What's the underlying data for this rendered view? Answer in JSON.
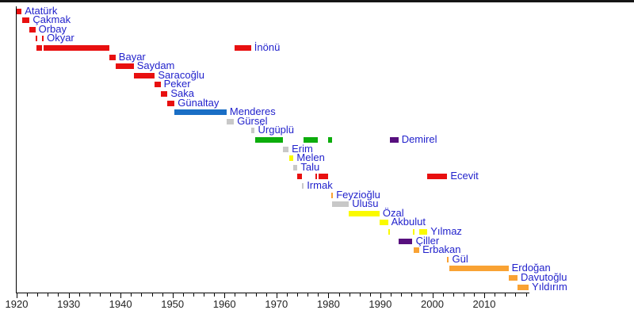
{
  "chart_data": {
    "type": "timeline",
    "description_visible_text_only": true,
    "colors": {
      "red": "#E81010",
      "blue": "#1A6EC5",
      "gray": "#C8C8C8",
      "green": "#0CAD0C",
      "yellow": "#FAFA00",
      "orange": "#F9A233",
      "purple": "#570F7E",
      "label_text": "#2222CC",
      "axis_text": "#222222",
      "axis_line": "#000000"
    },
    "axis": {
      "year_start": 1920,
      "year_end": 2018.7,
      "major_ticks": [
        1920,
        1930,
        1940,
        1950,
        1960,
        1970,
        1980,
        1990,
        2000,
        2010
      ],
      "minor_step": 2,
      "grid": false
    },
    "people": [
      {
        "id": "ataturk",
        "name": "Atatürk",
        "color": "red",
        "terms": [
          {
            "start": 1920.02,
            "end": 1920.95
          }
        ]
      },
      {
        "id": "cakmak",
        "name": "Çakmak",
        "color": "red",
        "terms": [
          {
            "start": 1921.05,
            "end": 1922.5
          }
        ]
      },
      {
        "id": "orbay",
        "name": "Orbay",
        "color": "red",
        "terms": [
          {
            "start": 1922.5,
            "end": 1923.6
          }
        ]
      },
      {
        "id": "okyar",
        "name": "Okyar",
        "color": "red",
        "terms": [
          {
            "start": 1923.62,
            "end": 1923.85
          },
          {
            "start": 1924.9,
            "end": 1925.17
          }
        ]
      },
      {
        "id": "inonu",
        "name": "İnönü",
        "color": "red",
        "terms": [
          {
            "start": 1923.85,
            "end": 1924.9
          },
          {
            "start": 1925.17,
            "end": 1937.8
          },
          {
            "start": 1961.87,
            "end": 1965.12
          }
        ]
      },
      {
        "id": "bayar",
        "name": "Bayar",
        "color": "red",
        "terms": [
          {
            "start": 1937.8,
            "end": 1939.04
          }
        ]
      },
      {
        "id": "saydam",
        "name": "Saydam",
        "color": "red",
        "terms": [
          {
            "start": 1939.04,
            "end": 1942.53
          }
        ]
      },
      {
        "id": "saracoglu",
        "name": "Saracoğlu",
        "color": "red",
        "terms": [
          {
            "start": 1942.53,
            "end": 1946.6
          }
        ]
      },
      {
        "id": "peker",
        "name": "Peker",
        "color": "red",
        "terms": [
          {
            "start": 1946.6,
            "end": 1947.7
          }
        ]
      },
      {
        "id": "saka",
        "name": "Saka",
        "color": "red",
        "terms": [
          {
            "start": 1947.7,
            "end": 1949.04
          }
        ]
      },
      {
        "id": "gunaltay",
        "name": "Günaltay",
        "color": "red",
        "terms": [
          {
            "start": 1949.04,
            "end": 1950.4
          }
        ]
      },
      {
        "id": "menderes",
        "name": "Menderes",
        "color": "blue",
        "terms": [
          {
            "start": 1950.4,
            "end": 1960.4
          }
        ]
      },
      {
        "id": "gursel",
        "name": "Gürsel",
        "color": "gray",
        "terms": [
          {
            "start": 1960.4,
            "end": 1961.83
          }
        ]
      },
      {
        "id": "urguplu",
        "name": "Ürgüplü",
        "color": "gray",
        "terms": [
          {
            "start": 1965.12,
            "end": 1965.83
          }
        ]
      },
      {
        "id": "demirel",
        "name": "Demirel",
        "color": "green",
        "terms": [
          {
            "start": 1965.83,
            "end": 1971.22
          },
          {
            "start": 1975.25,
            "end": 1978.04
          },
          {
            "start": 1979.9,
            "end": 1980.72
          },
          {
            "start": 1991.88,
            "end": 1993.48,
            "color": "purple"
          }
        ]
      },
      {
        "id": "erim",
        "name": "Erim",
        "color": "gray",
        "terms": [
          {
            "start": 1971.22,
            "end": 1972.33
          }
        ]
      },
      {
        "id": "melen",
        "name": "Melen",
        "color": "yellow",
        "terms": [
          {
            "start": 1972.4,
            "end": 1973.3
          }
        ]
      },
      {
        "id": "talu",
        "name": "Talu",
        "color": "gray",
        "terms": [
          {
            "start": 1973.3,
            "end": 1974.06
          }
        ]
      },
      {
        "id": "ecevit",
        "name": "Ecevit",
        "color": "red",
        "terms": [
          {
            "start": 1974.06,
            "end": 1974.88
          },
          {
            "start": 1977.46,
            "end": 1977.56
          },
          {
            "start": 1978.04,
            "end": 1979.9
          },
          {
            "start": 1999.04,
            "end": 2002.88
          }
        ]
      },
      {
        "id": "irmak",
        "name": "Irmak",
        "color": "gray",
        "terms": [
          {
            "start": 1974.88,
            "end": 1975.25
          }
        ]
      },
      {
        "id": "feyzioglu",
        "name": "Feyzioğlu",
        "color": "orange",
        "terms": [
          {
            "start": 1980.58,
            "end": 1980.72
          }
        ]
      },
      {
        "id": "ulusu",
        "name": "Ulusu",
        "color": "gray",
        "terms": [
          {
            "start": 1980.72,
            "end": 1983.95
          }
        ]
      },
      {
        "id": "ozal",
        "name": "Özal",
        "color": "yellow",
        "terms": [
          {
            "start": 1983.95,
            "end": 1989.84
          }
        ]
      },
      {
        "id": "akbulut",
        "name": "Akbulut",
        "color": "yellow",
        "terms": [
          {
            "start": 1989.84,
            "end": 1991.48
          }
        ]
      },
      {
        "id": "yilmaz",
        "name": "Yılmaz",
        "color": "yellow",
        "terms": [
          {
            "start": 1991.48,
            "end": 1991.88
          },
          {
            "start": 1996.2,
            "end": 1996.48
          },
          {
            "start": 1997.5,
            "end": 1999.04
          }
        ]
      },
      {
        "id": "ciller",
        "name": "Çiller",
        "color": "purple",
        "terms": [
          {
            "start": 1993.48,
            "end": 1996.2
          }
        ]
      },
      {
        "id": "erbakan",
        "name": "Erbakan",
        "color": "orange",
        "terms": [
          {
            "start": 1996.48,
            "end": 1997.5
          }
        ]
      },
      {
        "id": "gul",
        "name": "Gül",
        "color": "orange",
        "terms": [
          {
            "start": 2002.88,
            "end": 2003.2
          }
        ]
      },
      {
        "id": "erdogan",
        "name": "Erdoğan",
        "color": "orange",
        "terms": [
          {
            "start": 2003.2,
            "end": 2014.66
          }
        ]
      },
      {
        "id": "davutoglu",
        "name": "Davutoğlu",
        "color": "orange",
        "terms": [
          {
            "start": 2014.66,
            "end": 2016.4
          }
        ]
      },
      {
        "id": "yildirim",
        "name": "Yıldırım",
        "color": "orange",
        "terms": [
          {
            "start": 2016.4,
            "end": 2018.55
          }
        ]
      }
    ]
  }
}
